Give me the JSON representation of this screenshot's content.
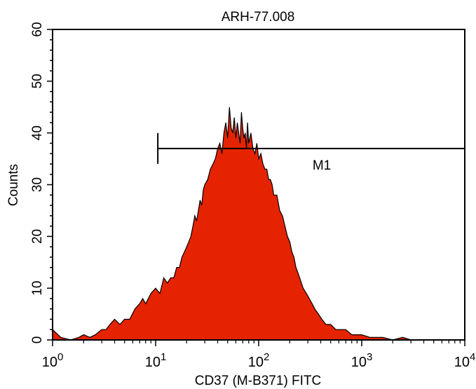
{
  "chart_data": {
    "type": "area",
    "title": "ARH-77.008",
    "xlabel": "CD37 (M-B371) FITC",
    "ylabel": "Counts",
    "x_scale": "log",
    "xlim": [
      1,
      10000
    ],
    "ylim": [
      0,
      60
    ],
    "x_ticks": [
      {
        "base": "10",
        "exp": "0"
      },
      {
        "base": "10",
        "exp": "1"
      },
      {
        "base": "10",
        "exp": "2"
      },
      {
        "base": "10",
        "exp": "3"
      },
      {
        "base": "10",
        "exp": "4"
      }
    ],
    "y_ticks": [
      "0",
      "10",
      "20",
      "30",
      "40",
      "50",
      "60"
    ],
    "grid": false,
    "fill_color": "#e52300",
    "line_color": "#000000",
    "marker": {
      "label": "M1",
      "x_start": 10.5,
      "x_end": 10000,
      "y": 37
    },
    "series": [
      {
        "x": [
          1,
          1.2,
          1.5,
          1.8,
          2,
          2.3,
          2.6,
          3,
          3.3,
          3.6,
          4,
          4.5,
          5,
          5.6,
          6.3,
          7,
          7.5,
          8,
          9,
          10,
          11,
          12,
          13,
          14,
          15,
          16,
          17,
          18,
          19,
          20,
          21,
          22,
          23,
          24,
          25,
          26,
          27,
          28,
          29,
          30,
          32,
          34,
          36,
          38,
          40,
          42,
          44,
          46,
          48,
          50,
          52,
          54,
          56,
          58,
          60,
          62,
          64,
          66,
          68,
          70,
          72,
          74,
          76,
          78,
          80,
          84,
          88,
          92,
          96,
          100,
          105,
          110,
          115,
          120,
          125,
          130,
          135,
          140,
          150,
          160,
          170,
          180,
          190,
          200,
          210,
          220,
          230,
          240,
          250,
          270,
          290,
          310,
          330,
          350,
          380,
          410,
          450,
          500,
          560,
          630,
          700,
          800,
          900,
          1000,
          1200,
          1400,
          1600,
          2000,
          2500,
          3000,
          4000,
          5000,
          6000,
          8000,
          10000
        ],
        "y": [
          2,
          0.5,
          0,
          0.5,
          1,
          0.5,
          1,
          2,
          2,
          3,
          4,
          3,
          4,
          4,
          6,
          7,
          8,
          7,
          9,
          10,
          9,
          12,
          11,
          12,
          12,
          14,
          14,
          16,
          17,
          18,
          19,
          20,
          22,
          24,
          23,
          25,
          27,
          26,
          29,
          30,
          31,
          33,
          34,
          35,
          37,
          38,
          36,
          40,
          42,
          39,
          45,
          41,
          40,
          43,
          39,
          42,
          40,
          38,
          44,
          41,
          39,
          40,
          37,
          42,
          38,
          40,
          37,
          36,
          38,
          35,
          36,
          34,
          33,
          33,
          31,
          31,
          30,
          28,
          28,
          25,
          24,
          22,
          20,
          19,
          17,
          16,
          14,
          13,
          12,
          10,
          9,
          8,
          7,
          6,
          5,
          4,
          3,
          3,
          2,
          2,
          2,
          1,
          1,
          1,
          0.5,
          0.5,
          0.5,
          0,
          0.5,
          0,
          0,
          0,
          0,
          0,
          0
        ]
      }
    ]
  }
}
